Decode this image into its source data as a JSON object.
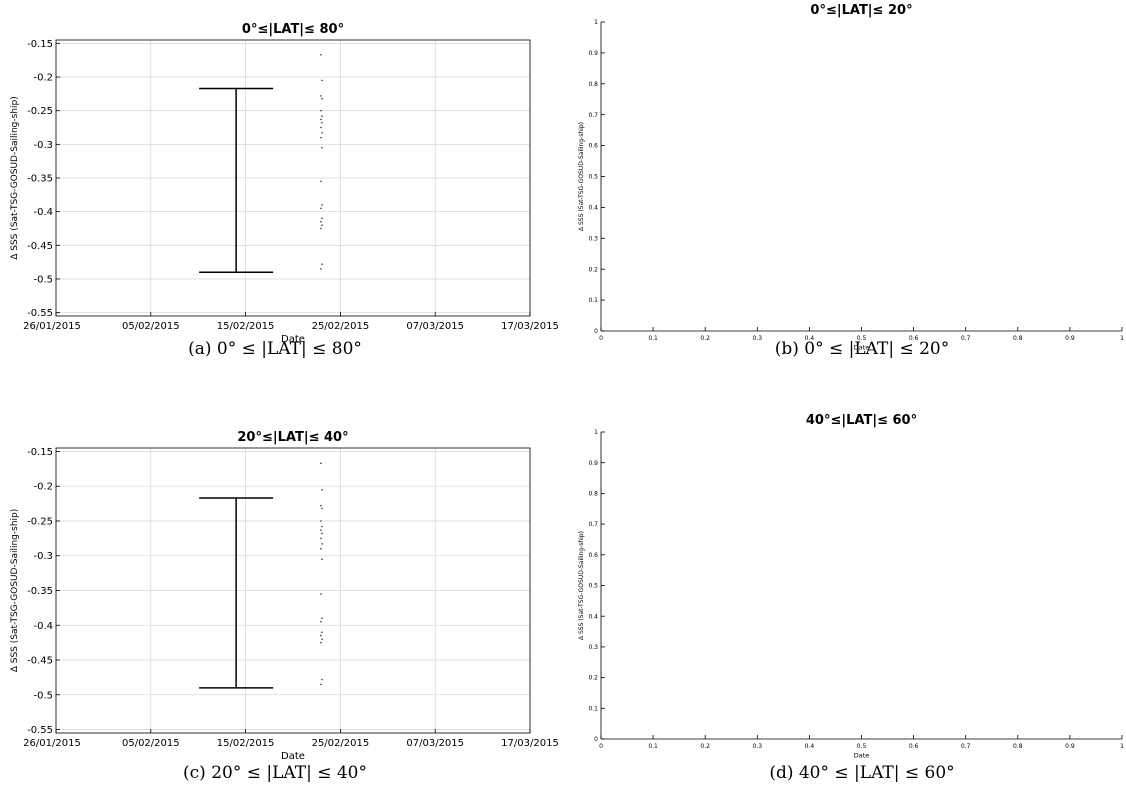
{
  "figure": {
    "captions": [
      "(a) 0° ≤ |LAT| ≤ 80°",
      "(b) 0° ≤ |LAT| ≤ 20°",
      "(c) 20° ≤ |LAT| ≤ 40°",
      "(d) 40° ≤ |LAT| ≤ 60°"
    ]
  },
  "chart_data": [
    {
      "type": "scatter",
      "title": "0°≤|LAT|≤ 80°",
      "xlabel": "Date",
      "ylabel": "Δ SSS (Sat-TSG-GOSUD-Sailing-ship)",
      "x_ticks": [
        "26/01/2015",
        "05/02/2015",
        "15/02/2015",
        "25/02/2015",
        "07/03/2015",
        "17/03/2015"
      ],
      "y_ticks": [
        "-0.15",
        "-0.2",
        "-0.25",
        "-0.3",
        "-0.35",
        "-0.4",
        "-0.45",
        "-0.5",
        "-0.55"
      ],
      "xlim": [
        "26/01/2015",
        "17/03/2015"
      ],
      "ylim": [
        -0.555,
        -0.145
      ],
      "grid": true,
      "errorbar": {
        "x": "14/02/2015",
        "low": -0.49,
        "high": -0.217
      },
      "points": {
        "x": "23/02/2015",
        "y": [
          -0.167,
          -0.205,
          -0.228,
          -0.232,
          -0.25,
          -0.258,
          -0.263,
          -0.268,
          -0.275,
          -0.283,
          -0.29,
          -0.305,
          -0.355,
          -0.39,
          -0.395,
          -0.41,
          -0.415,
          -0.42,
          -0.425,
          -0.478,
          -0.485
        ]
      }
    },
    {
      "type": "scatter",
      "title": "0°≤|LAT|≤ 20°",
      "xlabel": "Date",
      "ylabel": "Δ SSS (Sat-TSG-GOSUD-Sailing-ship)",
      "x_ticks": [
        "0",
        "0.1",
        "0.2",
        "0.3",
        "0.4",
        "0.5",
        "0.6",
        "0.7",
        "0.8",
        "0.9",
        "1"
      ],
      "y_ticks": [
        "0",
        "0.1",
        "0.2",
        "0.3",
        "0.4",
        "0.5",
        "0.6",
        "0.7",
        "0.8",
        "0.9",
        "1"
      ],
      "xlim": [
        0,
        1
      ],
      "ylim": [
        0,
        1
      ],
      "grid": false,
      "points": []
    },
    {
      "type": "scatter",
      "title": "20°≤|LAT|≤ 40°",
      "xlabel": "Date",
      "ylabel": "Δ SSS (Sat-TSG-GOSUD-Sailing-ship)",
      "x_ticks": [
        "26/01/2015",
        "05/02/2015",
        "15/02/2015",
        "25/02/2015",
        "07/03/2015",
        "17/03/2015"
      ],
      "y_ticks": [
        "-0.15",
        "-0.2",
        "-0.25",
        "-0.3",
        "-0.35",
        "-0.4",
        "-0.45",
        "-0.5",
        "-0.55"
      ],
      "xlim": [
        "26/01/2015",
        "17/03/2015"
      ],
      "ylim": [
        -0.555,
        -0.145
      ],
      "grid": true,
      "errorbar": {
        "x": "14/02/2015",
        "low": -0.49,
        "high": -0.217
      },
      "points": {
        "x": "23/02/2015",
        "y": [
          -0.167,
          -0.205,
          -0.228,
          -0.232,
          -0.25,
          -0.258,
          -0.263,
          -0.268,
          -0.275,
          -0.283,
          -0.29,
          -0.305,
          -0.355,
          -0.39,
          -0.395,
          -0.41,
          -0.415,
          -0.42,
          -0.425,
          -0.478,
          -0.485
        ]
      }
    },
    {
      "type": "scatter",
      "title": "40°≤|LAT|≤ 60°",
      "xlabel": "Date",
      "ylabel": "Δ SSS (Sat-TSG-GOSUD-Sailing-ship)",
      "x_ticks": [
        "0",
        "0.1",
        "0.2",
        "0.3",
        "0.4",
        "0.5",
        "0.6",
        "0.7",
        "0.8",
        "0.9",
        "1"
      ],
      "y_ticks": [
        "0",
        "0.1",
        "0.2",
        "0.3",
        "0.4",
        "0.5",
        "0.6",
        "0.7",
        "0.8",
        "0.9",
        "1"
      ],
      "xlim": [
        0,
        1
      ],
      "ylim": [
        0,
        1
      ],
      "grid": false,
      "points": []
    }
  ]
}
